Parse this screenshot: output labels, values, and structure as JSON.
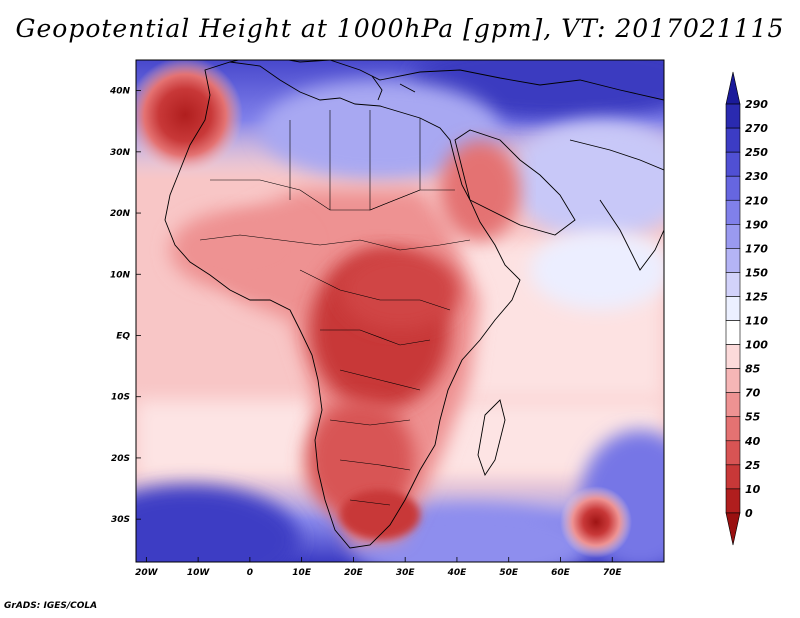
{
  "title": "Geopotential Height at 1000hPa [gpm], VT: 2017021115",
  "credit": "GrADS: IGES/COLA",
  "map": {
    "lat_labels": [
      "40N",
      "30N",
      "20N",
      "10N",
      "EQ",
      "10S",
      "20S",
      "30S"
    ],
    "lat_values": [
      40,
      30,
      20,
      10,
      0,
      -10,
      -20,
      -30
    ],
    "lon_labels": [
      "20W",
      "10W",
      "0",
      "10E",
      "20E",
      "30E",
      "40E",
      "50E",
      "60E",
      "70E"
    ],
    "lon_values": [
      -20,
      -10,
      0,
      10,
      20,
      30,
      40,
      50,
      60,
      70
    ],
    "lon_range": [
      -22,
      80
    ],
    "lat_range": [
      -37,
      45
    ]
  },
  "colorbar": {
    "levels": [
      "290",
      "270",
      "250",
      "230",
      "210",
      "190",
      "170",
      "150",
      "125",
      "110",
      "100",
      "85",
      "70",
      "55",
      "40",
      "25",
      "10",
      "0"
    ],
    "colors": [
      "#1a1a9a",
      "#2a2ab0",
      "#3c3cc4",
      "#5050d4",
      "#6666e0",
      "#8080ea",
      "#9a9af0",
      "#b4b4f5",
      "#d2d2fa",
      "#ecf0ff",
      "#ffffff",
      "#fcdada",
      "#f6b6b6",
      "#ee9292",
      "#e47272",
      "#d85454",
      "#c83838",
      "#b01e1e",
      "#9a1010"
    ]
  },
  "colors": {
    "high": "#3b3bc2",
    "low": "#b01e1e",
    "border": "#000000"
  }
}
